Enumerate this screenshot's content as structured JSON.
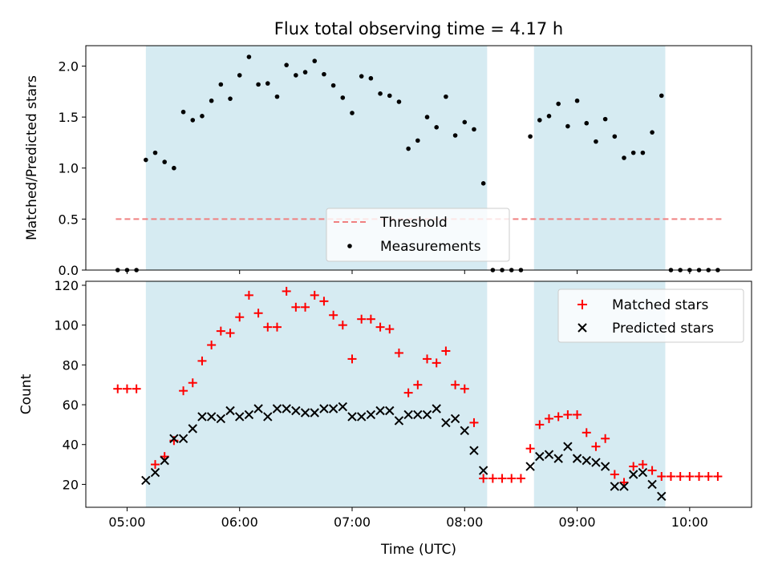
{
  "chart_data": [
    {
      "type": "scatter",
      "title": "Flux total observing time = 4.17 h",
      "xlabel": "",
      "ylabel": "Matched/Predicted stars",
      "xlim": [
        "04:38",
        "10:33"
      ],
      "ylim": [
        0,
        2.2
      ],
      "yticks": [
        "0.0",
        "0.5",
        "1.0",
        "1.5",
        "2.0"
      ],
      "shaded_intervals": [
        [
          "05:10",
          "08:12"
        ],
        [
          "08:37",
          "09:47"
        ]
      ],
      "threshold": {
        "value": 0.5,
        "from": "04:54",
        "to": "10:18"
      },
      "legend": {
        "position": "bottom-center",
        "entries": [
          "Threshold",
          "Measurements"
        ]
      },
      "series": [
        {
          "name": "Measurements",
          "x": [
            "04:55",
            "05:00",
            "05:05",
            "05:10",
            "05:15",
            "05:20",
            "05:25",
            "05:30",
            "05:35",
            "05:40",
            "05:45",
            "05:50",
            "05:55",
            "06:00",
            "06:05",
            "06:10",
            "06:15",
            "06:20",
            "06:25",
            "06:30",
            "06:35",
            "06:40",
            "06:45",
            "06:50",
            "06:55",
            "07:00",
            "07:05",
            "07:10",
            "07:15",
            "07:20",
            "07:25",
            "07:30",
            "07:35",
            "07:40",
            "07:45",
            "07:50",
            "07:55",
            "08:00",
            "08:05",
            "08:10",
            "08:15",
            "08:20",
            "08:25",
            "08:30",
            "08:35",
            "08:40",
            "08:45",
            "08:50",
            "08:55",
            "09:00",
            "09:05",
            "09:10",
            "09:15",
            "09:20",
            "09:25",
            "09:30",
            "09:35",
            "09:40",
            "09:45",
            "09:50",
            "09:55",
            "10:00",
            "10:05",
            "10:10",
            "10:15"
          ],
          "y": [
            0,
            0,
            0,
            1.08,
            1.15,
            1.06,
            1.0,
            1.55,
            1.47,
            1.51,
            1.66,
            1.82,
            1.68,
            1.91,
            2.09,
            1.82,
            1.83,
            1.7,
            2.01,
            1.91,
            1.94,
            2.05,
            1.92,
            1.81,
            1.69,
            1.54,
            1.9,
            1.88,
            1.73,
            1.71,
            1.65,
            1.19,
            1.27,
            1.5,
            1.4,
            1.7,
            1.32,
            1.45,
            1.38,
            0.85,
            0,
            0,
            0,
            0,
            1.31,
            1.47,
            1.51,
            1.63,
            1.41,
            1.66,
            1.44,
            1.26,
            1.48,
            1.31,
            1.1,
            1.15,
            1.15,
            1.35,
            1.71,
            0,
            0,
            0,
            0,
            0,
            0
          ]
        }
      ]
    },
    {
      "type": "scatter",
      "title": "",
      "xlabel": "Time (UTC)",
      "ylabel": "Count",
      "xlim": [
        "04:38",
        "10:33"
      ],
      "ylim": [
        8.5,
        122
      ],
      "xticks": [
        "05:00",
        "06:00",
        "07:00",
        "08:00",
        "09:00",
        "10:00"
      ],
      "yticks": [
        "20",
        "40",
        "60",
        "80",
        "100",
        "120"
      ],
      "shaded_intervals": [
        [
          "05:10",
          "08:12"
        ],
        [
          "08:37",
          "09:47"
        ]
      ],
      "legend": {
        "position": "top-right",
        "entries": [
          "Matched stars",
          "Predicted stars"
        ]
      },
      "series": [
        {
          "name": "Matched stars",
          "color": "#ff0000",
          "marker": "plus",
          "x": [
            "04:55",
            "05:00",
            "05:05",
            "05:15",
            "05:20",
            "05:25",
            "05:30",
            "05:35",
            "05:40",
            "05:45",
            "05:50",
            "05:55",
            "06:00",
            "06:05",
            "06:10",
            "06:15",
            "06:20",
            "06:25",
            "06:30",
            "06:35",
            "06:40",
            "06:45",
            "06:50",
            "06:55",
            "07:00",
            "07:05",
            "07:10",
            "07:15",
            "07:20",
            "07:25",
            "07:30",
            "07:35",
            "07:40",
            "07:45",
            "07:50",
            "07:55",
            "08:00",
            "08:05",
            "08:10",
            "08:15",
            "08:20",
            "08:25",
            "08:30",
            "08:35",
            "08:40",
            "08:45",
            "08:50",
            "08:55",
            "09:00",
            "09:05",
            "09:10",
            "09:15",
            "09:20",
            "09:25",
            "09:30",
            "09:35",
            "09:40",
            "09:45",
            "09:50",
            "09:55",
            "10:00",
            "10:05",
            "10:10",
            "10:15"
          ],
          "y": [
            68,
            68,
            68,
            30,
            34,
            42,
            67,
            71,
            82,
            90,
            97,
            96,
            104,
            115,
            106,
            99,
            99,
            117,
            109,
            109,
            115,
            112,
            105,
            100,
            83,
            103,
            103,
            99,
            98,
            86,
            66,
            70,
            83,
            81,
            87,
            70,
            68,
            51,
            23,
            23,
            23,
            23,
            23,
            38,
            50,
            53,
            54,
            55,
            55,
            46,
            39,
            43,
            25,
            21,
            29,
            30,
            27,
            24,
            24,
            24,
            24,
            24,
            24,
            24
          ]
        },
        {
          "name": "Predicted stars",
          "color": "#000000",
          "marker": "x",
          "x": [
            "05:10",
            "05:15",
            "05:20",
            "05:25",
            "05:30",
            "05:35",
            "05:40",
            "05:45",
            "05:50",
            "05:55",
            "06:00",
            "06:05",
            "06:10",
            "06:15",
            "06:20",
            "06:25",
            "06:30",
            "06:35",
            "06:40",
            "06:45",
            "06:50",
            "06:55",
            "07:00",
            "07:05",
            "07:10",
            "07:15",
            "07:20",
            "07:25",
            "07:30",
            "07:35",
            "07:40",
            "07:45",
            "07:50",
            "07:55",
            "08:00",
            "08:05",
            "08:10",
            "08:35",
            "08:40",
            "08:45",
            "08:50",
            "08:55",
            "09:00",
            "09:05",
            "09:10",
            "09:15",
            "09:20",
            "09:25",
            "09:30",
            "09:35",
            "09:40",
            "09:45"
          ],
          "y": [
            22,
            26,
            32,
            43,
            43,
            48,
            54,
            54,
            53,
            57,
            54,
            55,
            58,
            54,
            58,
            58,
            57,
            56,
            56,
            58,
            58,
            59,
            54,
            54,
            55,
            57,
            57,
            52,
            55,
            55,
            55,
            58,
            51,
            53,
            47,
            37,
            27,
            29,
            34,
            35,
            33,
            39,
            33,
            32,
            31,
            29,
            19,
            19,
            25,
            26,
            20,
            14
          ]
        }
      ]
    }
  ]
}
